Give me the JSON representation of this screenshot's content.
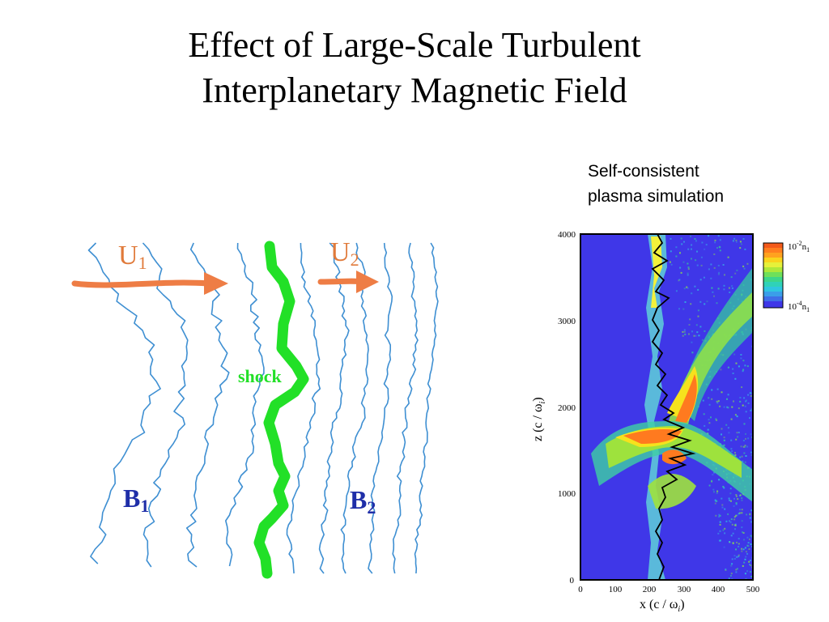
{
  "slide": {
    "title_line1": "Effect of Large-Scale Turbulent",
    "title_line2": "Interplanetary Magnetic Field",
    "caption_line1": "Self-consistent",
    "caption_line2": "plasma simulation"
  },
  "diagram": {
    "u1": {
      "main": "U",
      "sub": "1"
    },
    "u2": {
      "main": "U",
      "sub": "2"
    },
    "b1": {
      "main": "B",
      "sub": "1"
    },
    "b2": {
      "main": "B",
      "sub": "2"
    },
    "shock_label": "shock",
    "colors": {
      "field_lines": "#3e8fd2",
      "arrow": "#ee7d45",
      "shock": "#22e027",
      "b_label": "#1f2ea8",
      "u_label": "#e07a3a"
    }
  },
  "simulation": {
    "y_ticks": [
      "0",
      "1000",
      "2000",
      "3000",
      "4000"
    ],
    "x_ticks": [
      "0",
      "100",
      "200",
      "300",
      "400",
      "500"
    ],
    "y_label": "z  (c / ω",
    "y_label_sub": "i",
    "y_label_end": ")",
    "x_label": "x  (c / ω",
    "x_label_sub": "i",
    "x_label_end": ")",
    "colorbar_top": {
      "base": "10",
      "exp": "-2",
      "unit": "n",
      "unit_sub": "1"
    },
    "colorbar_bottom": {
      "base": "10",
      "exp": "-4",
      "unit": "n",
      "unit_sub": "1"
    },
    "colors": {
      "background": "#3f37e8",
      "high": "#ff7a1f"
    }
  }
}
